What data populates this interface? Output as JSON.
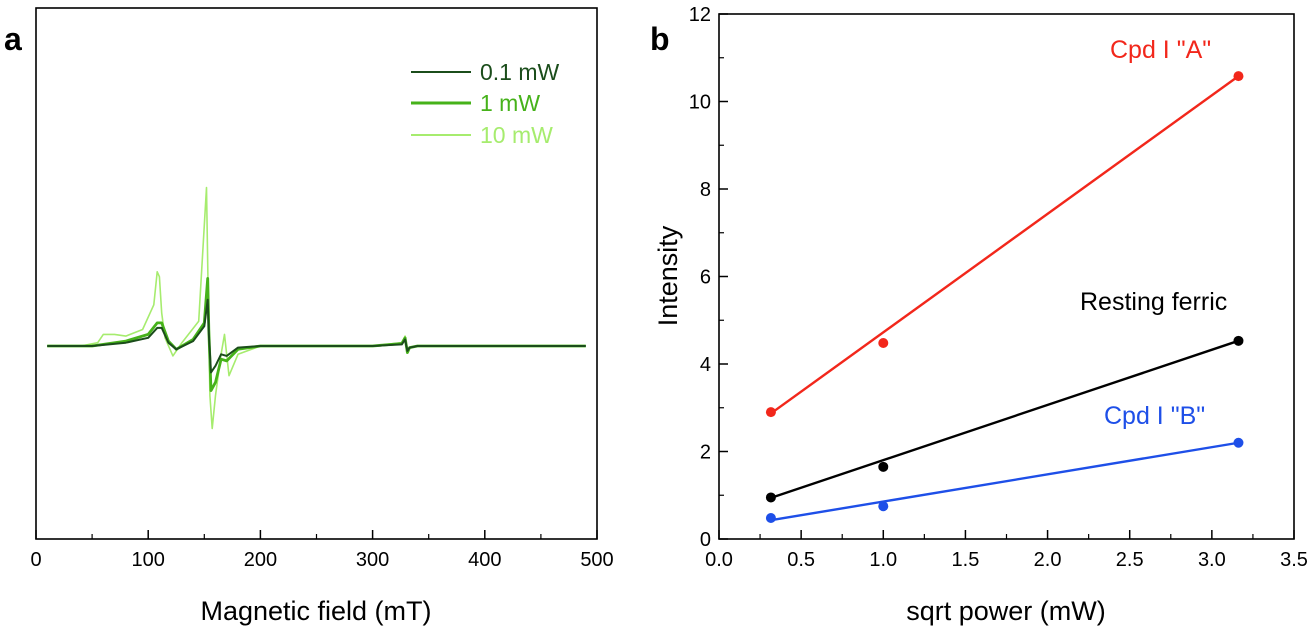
{
  "colors": {
    "dark_green": "#1b4d1b",
    "mid_green": "#46b21a",
    "light_green": "#a6ec6e",
    "red": "#f2271b",
    "black": "#000000",
    "blue": "#1e4fe8"
  },
  "chart_data": [
    {
      "type": "line",
      "panel_label": "a",
      "xlabel": "Magnetic field  (mT)",
      "ylabel": "",
      "xlim": [
        0,
        500
      ],
      "x_ticks": [
        0,
        100,
        200,
        300,
        400,
        500
      ],
      "x_tick_labels": [
        "0",
        "100",
        "200",
        "300",
        "400",
        "500"
      ],
      "y_axis_shown": false,
      "grid": false,
      "legend_position": "top-right",
      "series": [
        {
          "name": "0.1 mW",
          "color": "#1b4d1b",
          "x": [
            10,
            50,
            80,
            100,
            108,
            112,
            118,
            125,
            140,
            150,
            153,
            154,
            156,
            160,
            165,
            170,
            180,
            200,
            300,
            326,
            329,
            331,
            333,
            340,
            400,
            490
          ],
          "y": [
            0,
            0,
            0.2,
            0.5,
            1.1,
            1.1,
            0.2,
            -0.2,
            0.3,
            1.2,
            2.8,
            0.8,
            -1.6,
            -1.2,
            -0.5,
            -0.6,
            -0.1,
            0,
            0,
            0.1,
            0.4,
            -0.3,
            -0.1,
            0,
            0,
            0
          ]
        },
        {
          "name": "1 mW",
          "color": "#46b21a",
          "x": [
            10,
            50,
            80,
            100,
            108,
            112,
            118,
            125,
            140,
            150,
            153,
            154,
            156,
            160,
            165,
            170,
            180,
            200,
            300,
            326,
            329,
            331,
            333,
            340,
            400,
            490
          ],
          "y": [
            0,
            0,
            0.3,
            0.7,
            1.4,
            1.4,
            0.3,
            -0.2,
            0.4,
            1.4,
            4.1,
            1.0,
            -2.7,
            -2.2,
            -0.8,
            -0.9,
            -0.2,
            0,
            0,
            0.15,
            0.5,
            -0.4,
            -0.1,
            0,
            0,
            0
          ]
        },
        {
          "name": "10 mW",
          "color": "#a6ec6e",
          "x": [
            10,
            40,
            55,
            60,
            65,
            70,
            80,
            95,
            105,
            108,
            110,
            112,
            115,
            122,
            130,
            145,
            152,
            153,
            155,
            157,
            160,
            165,
            168,
            172,
            180,
            200,
            300,
            326,
            329,
            331,
            333,
            340,
            400,
            490
          ],
          "y": [
            0,
            0,
            0.2,
            0.7,
            0.7,
            0.7,
            0.6,
            1.0,
            2.5,
            4.5,
            4.2,
            2.0,
            0.5,
            -0.6,
            0.2,
            1.5,
            9.6,
            5.0,
            -3.0,
            -5.0,
            -3.0,
            -0.5,
            0.7,
            -1.8,
            -0.5,
            0,
            0,
            0.2,
            0.6,
            -0.3,
            -0.1,
            0,
            0,
            0
          ]
        }
      ]
    },
    {
      "type": "scatter",
      "panel_label": "b",
      "xlabel": "sqrt power (mW)",
      "ylabel": "Intensity",
      "xlim": [
        0.0,
        3.5
      ],
      "ylim": [
        0,
        12
      ],
      "x_ticks": [
        0.0,
        0.5,
        1.0,
        1.5,
        2.0,
        2.5,
        3.0,
        3.5
      ],
      "x_tick_labels": [
        "0.0",
        "0.5",
        "1.0",
        "1.5",
        "2.0",
        "2.5",
        "3.0",
        "3.5"
      ],
      "y_ticks": [
        0,
        2,
        4,
        6,
        8,
        10,
        12
      ],
      "y_tick_labels": [
        "0",
        "2",
        "4",
        "6",
        "8",
        "10",
        "12"
      ],
      "grid": false,
      "series": [
        {
          "name": "Cpd I \"A\"",
          "color": "#f2271b",
          "x": [
            0.316,
            1.0,
            3.162
          ],
          "y": [
            2.9,
            4.48,
            10.58
          ],
          "fit": [
            [
              0.316,
              2.87
            ],
            [
              3.162,
              10.58
            ]
          ]
        },
        {
          "name": "Resting ferric",
          "color": "#000000",
          "x": [
            0.316,
            1.0,
            3.162
          ],
          "y": [
            0.95,
            1.65,
            4.53
          ],
          "fit": [
            [
              0.316,
              0.94
            ],
            [
              3.162,
              4.53
            ]
          ]
        },
        {
          "name": "Cpd I \"B\"",
          "color": "#1e4fe8",
          "x": [
            0.316,
            1.0,
            3.162
          ],
          "y": [
            0.48,
            0.75,
            2.2
          ],
          "fit": [
            [
              0.316,
              0.43
            ],
            [
              3.162,
              2.2
            ]
          ]
        }
      ]
    }
  ]
}
